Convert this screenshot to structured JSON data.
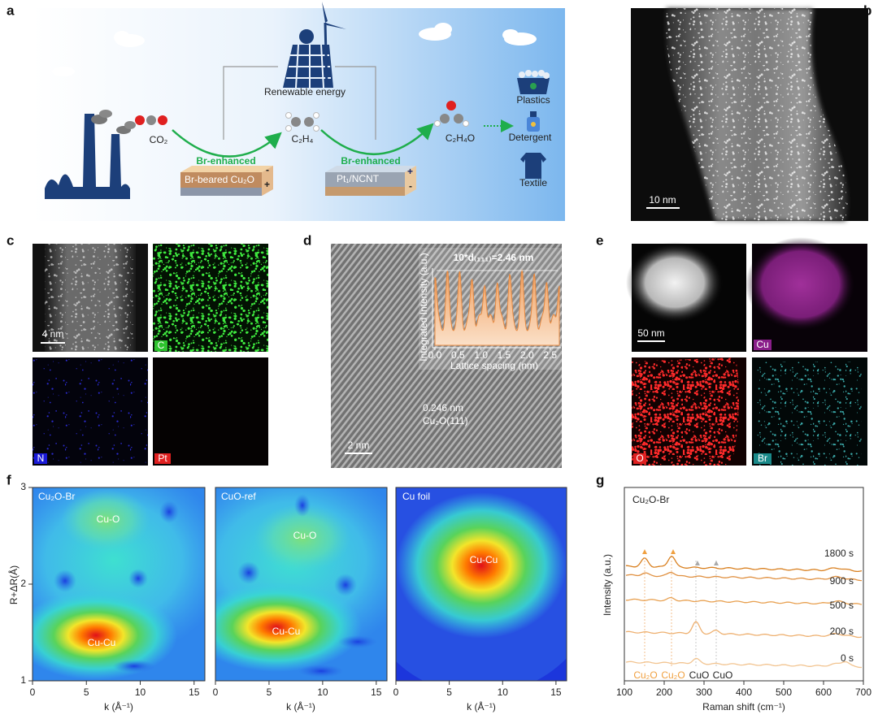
{
  "panels": {
    "a": {
      "label": "a",
      "energy": "Renewable energy",
      "co2": "CO₂",
      "c2h4": "C₂H₄",
      "c2h4o": "C₂H₄O",
      "br_enhanced": [
        "Br-enhanced",
        "Br-enhanced"
      ],
      "catalysts": [
        "Br-beared Cu₂O",
        "Pt₁/NCNT"
      ],
      "signs_1": [
        "-",
        "+"
      ],
      "signs_2": [
        "+",
        "-"
      ],
      "products": [
        "Plastics",
        "Detergent",
        "Textile"
      ]
    },
    "b": {
      "label": "b",
      "scale_bar": "10 nm"
    },
    "c": {
      "label": "c",
      "scale_bar": "4 nm",
      "elements": [
        "C",
        "N",
        "Pt"
      ]
    },
    "d": {
      "label": "d",
      "scale_bar": "2 nm",
      "spacing": "0.246 nm",
      "plane": "Cu₂O(111)",
      "inset": {
        "annotation": "10*d₍₁₁₁₎=2.46 nm",
        "ylabel": "Integrated Intensity (a.u.)",
        "xlabel": "Lattice spacing (nm)",
        "xlim": [
          0,
          2.7
        ],
        "xticks": [
          {
            "value": 0,
            "label": "0.0"
          },
          0.5,
          {
            "value": 1,
            "label": "1.0"
          },
          1.5,
          {
            "value": 2,
            "label": "2.0"
          },
          2.5
        ]
      }
    },
    "e": {
      "label": "e",
      "scale_bar": "50 nm",
      "elements": [
        "Cu",
        "O",
        "Br"
      ]
    },
    "f": {
      "label": "f",
      "ylabel": "R+ΔR(Å)",
      "xlabel": "k (Å⁻¹)",
      "xlim": [
        0,
        16
      ],
      "ylim": [
        1,
        3
      ],
      "xticks": [
        0,
        5,
        10,
        15
      ],
      "yticks": [
        1,
        2,
        3
      ],
      "plots": [
        {
          "title": "Cu₂O-Br",
          "features": [
            "Cu-O",
            "Cu-Cu"
          ]
        },
        {
          "title": "CuO-ref",
          "features": [
            "Cu-O",
            "Cu-Cu"
          ]
        },
        {
          "title": "Cu foil",
          "features": [
            "Cu-Cu"
          ]
        }
      ]
    },
    "g": {
      "label": "g",
      "title": "Cu₂O-Br",
      "ylabel": "Intensity (a.u.)",
      "xlabel": "Raman shift (cm⁻¹)",
      "xlim": [
        100,
        700
      ],
      "xticks": [
        100,
        200,
        300,
        400,
        500,
        600,
        700
      ],
      "times": [
        "1800 s",
        "900 s",
        "500 s",
        "200 s",
        "0 s"
      ],
      "peaks": [
        "Cu₂O",
        "Cu₂O",
        "CuO",
        "CuO"
      ]
    }
  }
}
